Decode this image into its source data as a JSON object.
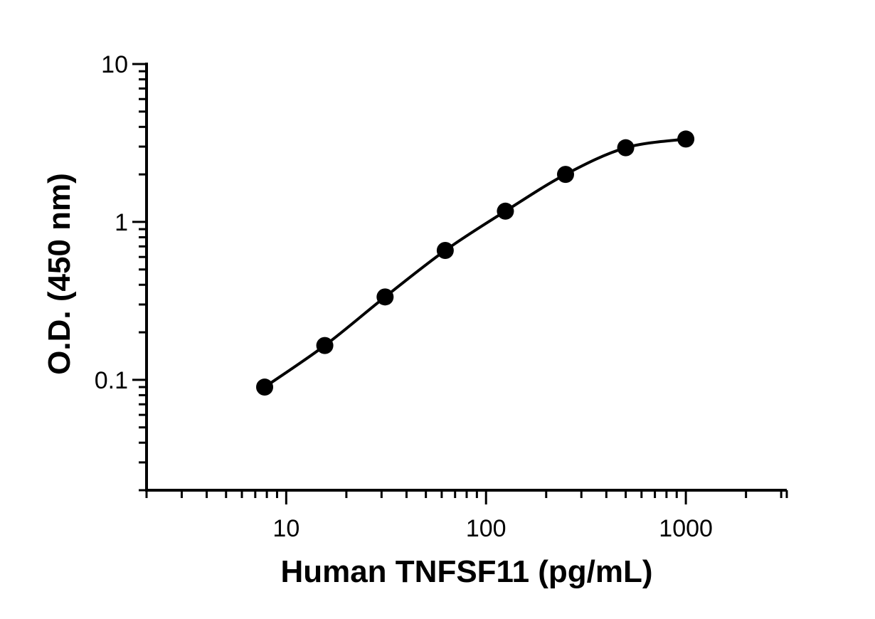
{
  "chart_data": {
    "type": "scatter",
    "title": "",
    "xlabel": "Human TNFSF11 (pg/mL)",
    "ylabel": "O.D. (450 nm)",
    "x_scale": "log",
    "y_scale": "log",
    "xlim": [
      2,
      3200
    ],
    "ylim": [
      0.02,
      10
    ],
    "x_ticks": [
      {
        "value": 10,
        "label": "10"
      },
      {
        "value": 100,
        "label": "100"
      },
      {
        "value": 1000,
        "label": "1000"
      }
    ],
    "y_ticks": [
      {
        "value": 0.1,
        "label": "0.1"
      },
      {
        "value": 1,
        "label": "1"
      },
      {
        "value": 10,
        "label": "10"
      }
    ],
    "grid": false,
    "series": [
      {
        "x": [
          7.8,
          15.6,
          31.25,
          62.5,
          125,
          250,
          500,
          1000
        ],
        "y": [
          0.09,
          0.165,
          0.335,
          0.66,
          1.17,
          2.0,
          2.95,
          3.35
        ]
      }
    ],
    "fit_curve": true,
    "color": "#000000"
  }
}
